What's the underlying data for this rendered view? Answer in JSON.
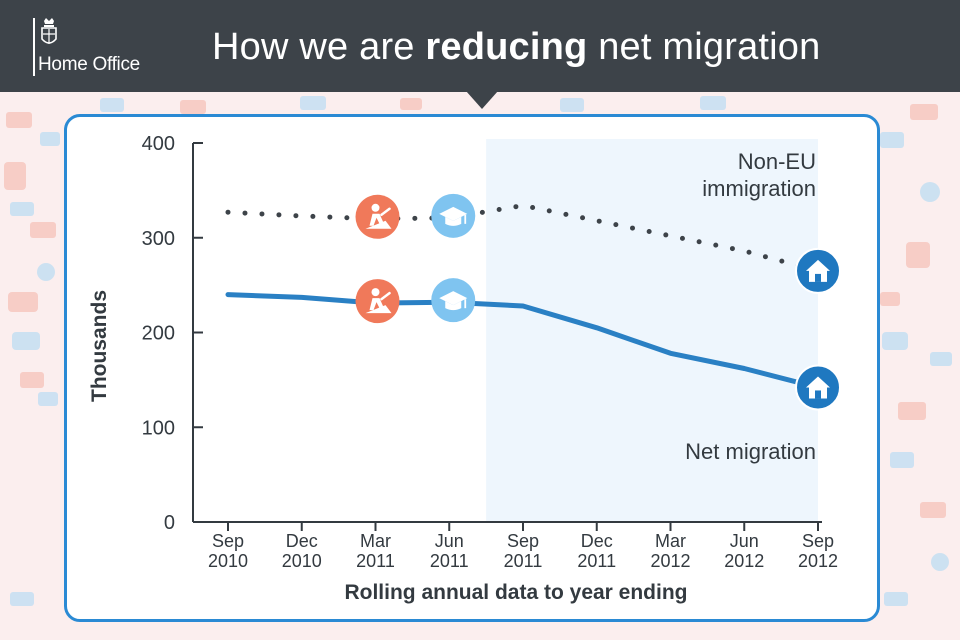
{
  "header": {
    "department": "Home Office",
    "title_pre": "How we are ",
    "title_bold": "reducing",
    "title_post": " net migration"
  },
  "colors": {
    "header_bg": "#3d4349",
    "frame": "#2a8ad4",
    "net_line": "#2a80c4",
    "noneu_line": "#3d4349",
    "highlight": "#eef6fd",
    "work_marker": "#f0795a",
    "study_marker": "#7fc4f0",
    "family_marker": "#1f78c0"
  },
  "chart_data": {
    "type": "line",
    "categories": [
      [
        "Sep",
        "2010"
      ],
      [
        "Dec",
        "2010"
      ],
      [
        "Mar",
        "2011"
      ],
      [
        "Jun",
        "2011"
      ],
      [
        "Sep",
        "2011"
      ],
      [
        "Dec",
        "2011"
      ],
      [
        "Mar",
        "2012"
      ],
      [
        "Jun",
        "2012"
      ],
      [
        "Sep",
        "2012"
      ]
    ],
    "series": [
      {
        "name": "Non-EU immigration",
        "label_lines": [
          "Non-EU",
          "immigration"
        ],
        "style": "dotted",
        "values": [
          327,
          323,
          320,
          321,
          334,
          318,
          302,
          286,
          265
        ]
      },
      {
        "name": "Net migration",
        "label_lines": [
          "Net migration"
        ],
        "style": "solid",
        "values": [
          240,
          237,
          231,
          232,
          228,
          205,
          178,
          162,
          142
        ]
      }
    ],
    "ylabel": "Thousands",
    "xlabel": "Rolling annual data to year ending",
    "ylim": [
      0,
      400
    ],
    "yticks": [
      0,
      100,
      200,
      300,
      400
    ],
    "highlight_range": [
      3.5,
      8
    ],
    "markers": [
      {
        "icon": "worker-icon",
        "x": 2,
        "series": 0
      },
      {
        "icon": "graduation-cap-icon",
        "x": 3,
        "series": 0
      },
      {
        "icon": "worker-icon",
        "x": 2,
        "series": 1
      },
      {
        "icon": "graduation-cap-icon",
        "x": 3,
        "series": 1
      },
      {
        "icon": "house-icon",
        "x": 8,
        "series": 0
      },
      {
        "icon": "house-icon",
        "x": 8,
        "series": 1
      }
    ]
  }
}
